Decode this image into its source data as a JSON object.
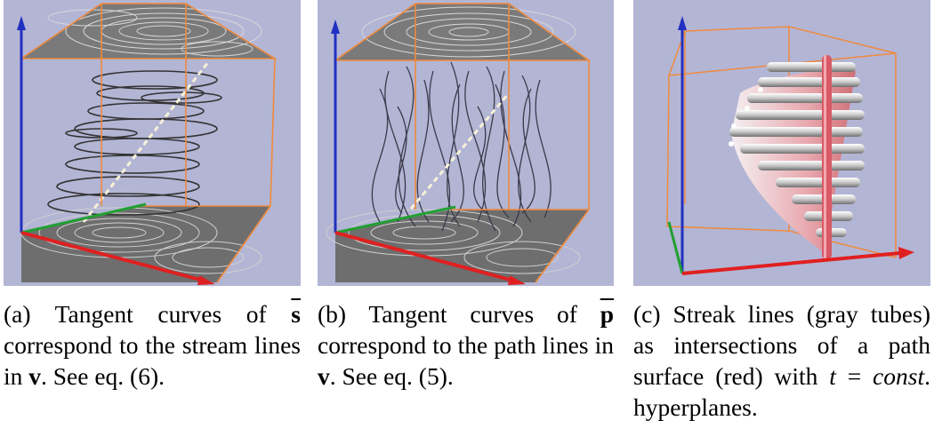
{
  "figure": {
    "panels": [
      {
        "label": "(a)",
        "caption_parts": [
          "(a) Tangent curves of ",
          "s",
          " correspond to the stream lines in ",
          "v",
          ". See eq. (6)."
        ]
      },
      {
        "label": "(b)",
        "caption_parts": [
          "(b) Tangent curves of ",
          "p",
          " correspond to the path lines in ",
          "v",
          ". See eq. (5)."
        ]
      },
      {
        "label": "(c)",
        "caption_parts": [
          "(c) Streak lines (gray tubes) as intersections of a path surface (red) with ",
          "t",
          " = ",
          "const",
          ". hyperplanes."
        ]
      }
    ]
  },
  "colors": {
    "background": "#b3b5d5",
    "box": "#f08a3c",
    "axis_x": "#e02020",
    "axis_y": "#20a030",
    "axis_z": "#2030c0",
    "path_surface": "#e8a0a8",
    "tubes": "#d8d8d8"
  }
}
